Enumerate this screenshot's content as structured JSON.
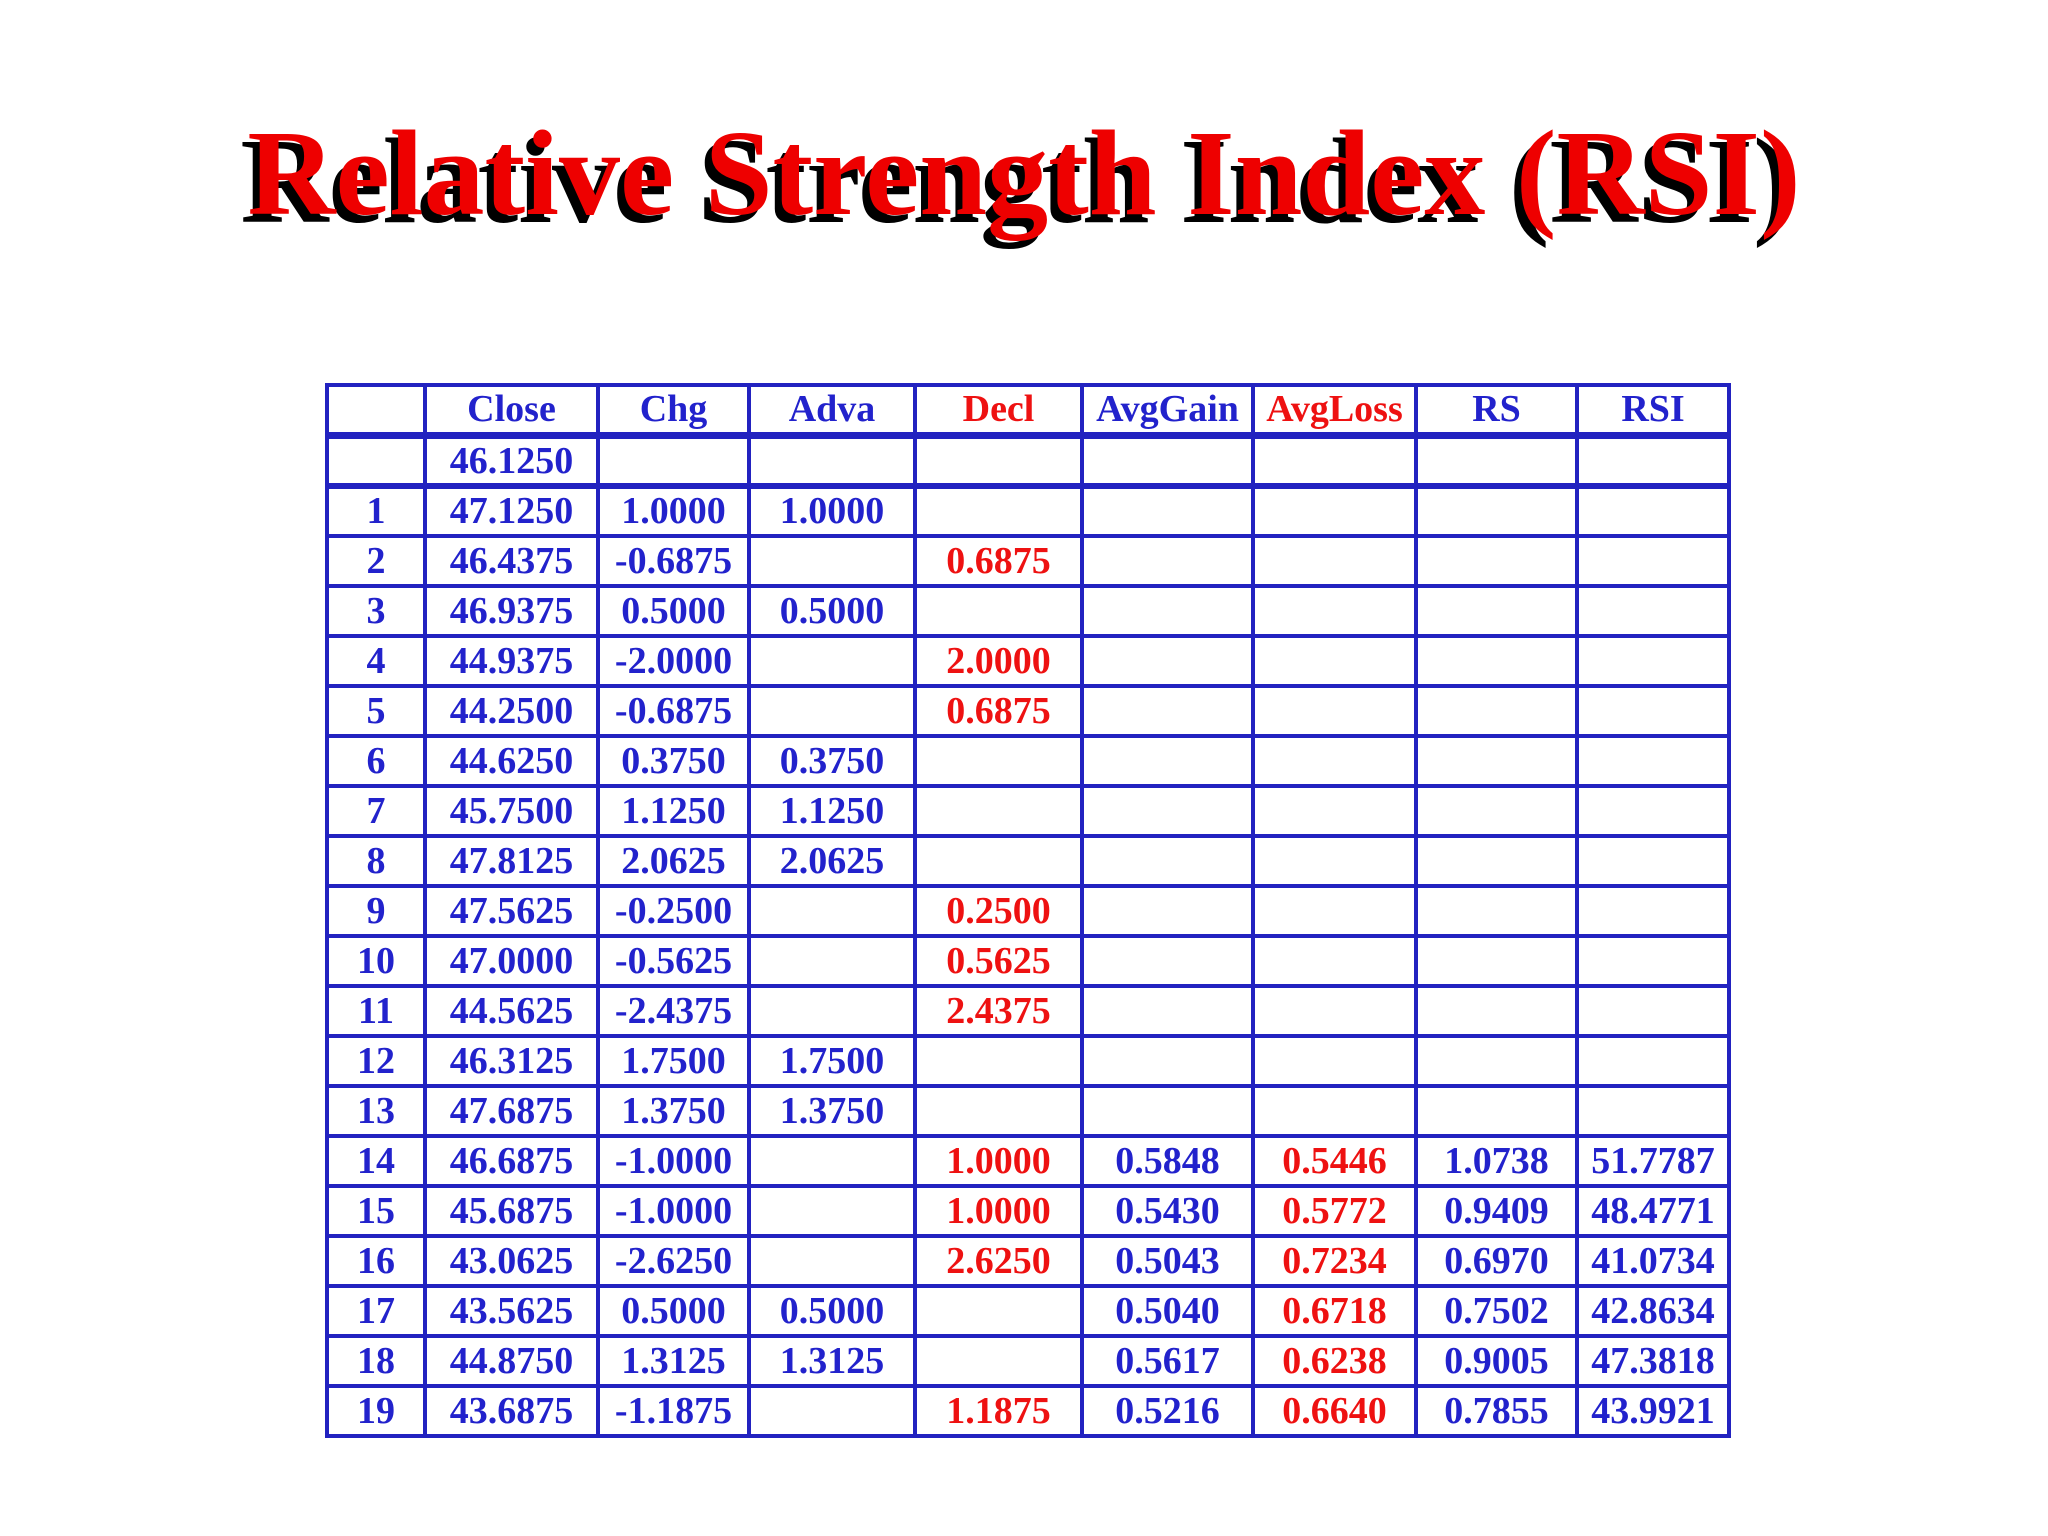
{
  "title": {
    "text": "Relative Strength Index (RSI)",
    "color": "#ee0000",
    "shadow_color": "#000000"
  },
  "colors": {
    "table_border_blue": "#2222c0",
    "value_blue": "#2222cc",
    "value_red": "#ee1111",
    "background": "#ffffff"
  },
  "table": {
    "columns": [
      {
        "key": "label",
        "label": "",
        "header_color": "blue",
        "value_color": "blue"
      },
      {
        "key": "close",
        "label": "Close",
        "header_color": "blue",
        "value_color": "blue"
      },
      {
        "key": "chg",
        "label": "Chg",
        "header_color": "blue",
        "value_color": "blue"
      },
      {
        "key": "adva",
        "label": "Adva",
        "header_color": "blue",
        "value_color": "blue"
      },
      {
        "key": "decl",
        "label": "Decl",
        "header_color": "red",
        "value_color": "red"
      },
      {
        "key": "avggain",
        "label": "AvgGain",
        "header_color": "blue",
        "value_color": "blue"
      },
      {
        "key": "avgloss",
        "label": "AvgLoss",
        "header_color": "red",
        "value_color": "red"
      },
      {
        "key": "rs",
        "label": "RS",
        "header_color": "blue",
        "value_color": "blue"
      },
      {
        "key": "rsi",
        "label": "RSI",
        "header_color": "blue",
        "value_color": "blue"
      }
    ],
    "rows": [
      {
        "label": "",
        "close": "46.1250",
        "chg": "",
        "adva": "",
        "decl": "",
        "avggain": "",
        "avgloss": "",
        "rs": "",
        "rsi": ""
      },
      {
        "label": "1",
        "close": "47.1250",
        "chg": "1.0000",
        "adva": "1.0000",
        "decl": "",
        "avggain": "",
        "avgloss": "",
        "rs": "",
        "rsi": ""
      },
      {
        "label": "2",
        "close": "46.4375",
        "chg": "-0.6875",
        "adva": "",
        "decl": "0.6875",
        "avggain": "",
        "avgloss": "",
        "rs": "",
        "rsi": ""
      },
      {
        "label": "3",
        "close": "46.9375",
        "chg": "0.5000",
        "adva": "0.5000",
        "decl": "",
        "avggain": "",
        "avgloss": "",
        "rs": "",
        "rsi": ""
      },
      {
        "label": "4",
        "close": "44.9375",
        "chg": "-2.0000",
        "adva": "",
        "decl": "2.0000",
        "avggain": "",
        "avgloss": "",
        "rs": "",
        "rsi": ""
      },
      {
        "label": "5",
        "close": "44.2500",
        "chg": "-0.6875",
        "adva": "",
        "decl": "0.6875",
        "avggain": "",
        "avgloss": "",
        "rs": "",
        "rsi": ""
      },
      {
        "label": "6",
        "close": "44.6250",
        "chg": "0.3750",
        "adva": "0.3750",
        "decl": "",
        "avggain": "",
        "avgloss": "",
        "rs": "",
        "rsi": ""
      },
      {
        "label": "7",
        "close": "45.7500",
        "chg": "1.1250",
        "adva": "1.1250",
        "decl": "",
        "avggain": "",
        "avgloss": "",
        "rs": "",
        "rsi": ""
      },
      {
        "label": "8",
        "close": "47.8125",
        "chg": "2.0625",
        "adva": "2.0625",
        "decl": "",
        "avggain": "",
        "avgloss": "",
        "rs": "",
        "rsi": ""
      },
      {
        "label": "9",
        "close": "47.5625",
        "chg": "-0.2500",
        "adva": "",
        "decl": "0.2500",
        "avggain": "",
        "avgloss": "",
        "rs": "",
        "rsi": ""
      },
      {
        "label": "10",
        "close": "47.0000",
        "chg": "-0.5625",
        "adva": "",
        "decl": "0.5625",
        "avggain": "",
        "avgloss": "",
        "rs": "",
        "rsi": ""
      },
      {
        "label": "11",
        "close": "44.5625",
        "chg": "-2.4375",
        "adva": "",
        "decl": "2.4375",
        "avggain": "",
        "avgloss": "",
        "rs": "",
        "rsi": ""
      },
      {
        "label": "12",
        "close": "46.3125",
        "chg": "1.7500",
        "adva": "1.7500",
        "decl": "",
        "avggain": "",
        "avgloss": "",
        "rs": "",
        "rsi": ""
      },
      {
        "label": "13",
        "close": "47.6875",
        "chg": "1.3750",
        "adva": "1.3750",
        "decl": "",
        "avggain": "",
        "avgloss": "",
        "rs": "",
        "rsi": ""
      },
      {
        "label": "14",
        "close": "46.6875",
        "chg": "-1.0000",
        "adva": "",
        "decl": "1.0000",
        "avggain": "0.5848",
        "avgloss": "0.5446",
        "rs": "1.0738",
        "rsi": "51.7787"
      },
      {
        "label": "15",
        "close": "45.6875",
        "chg": "-1.0000",
        "adva": "",
        "decl": "1.0000",
        "avggain": "0.5430",
        "avgloss": "0.5772",
        "rs": "0.9409",
        "rsi": "48.4771"
      },
      {
        "label": "16",
        "close": "43.0625",
        "chg": "-2.6250",
        "adva": "",
        "decl": "2.6250",
        "avggain": "0.5043",
        "avgloss": "0.7234",
        "rs": "0.6970",
        "rsi": "41.0734"
      },
      {
        "label": "17",
        "close": "43.5625",
        "chg": "0.5000",
        "adva": "0.5000",
        "decl": "",
        "avggain": "0.5040",
        "avgloss": "0.6718",
        "rs": "0.7502",
        "rsi": "42.8634"
      },
      {
        "label": "18",
        "close": "44.8750",
        "chg": "1.3125",
        "adva": "1.3125",
        "decl": "",
        "avggain": "0.5617",
        "avgloss": "0.6238",
        "rs": "0.9005",
        "rsi": "47.3818"
      },
      {
        "label": "19",
        "close": "43.6875",
        "chg": "-1.1875",
        "adva": "",
        "decl": "1.1875",
        "avggain": "0.5216",
        "avgloss": "0.6640",
        "rs": "0.7855",
        "rsi": "43.9921"
      }
    ]
  }
}
